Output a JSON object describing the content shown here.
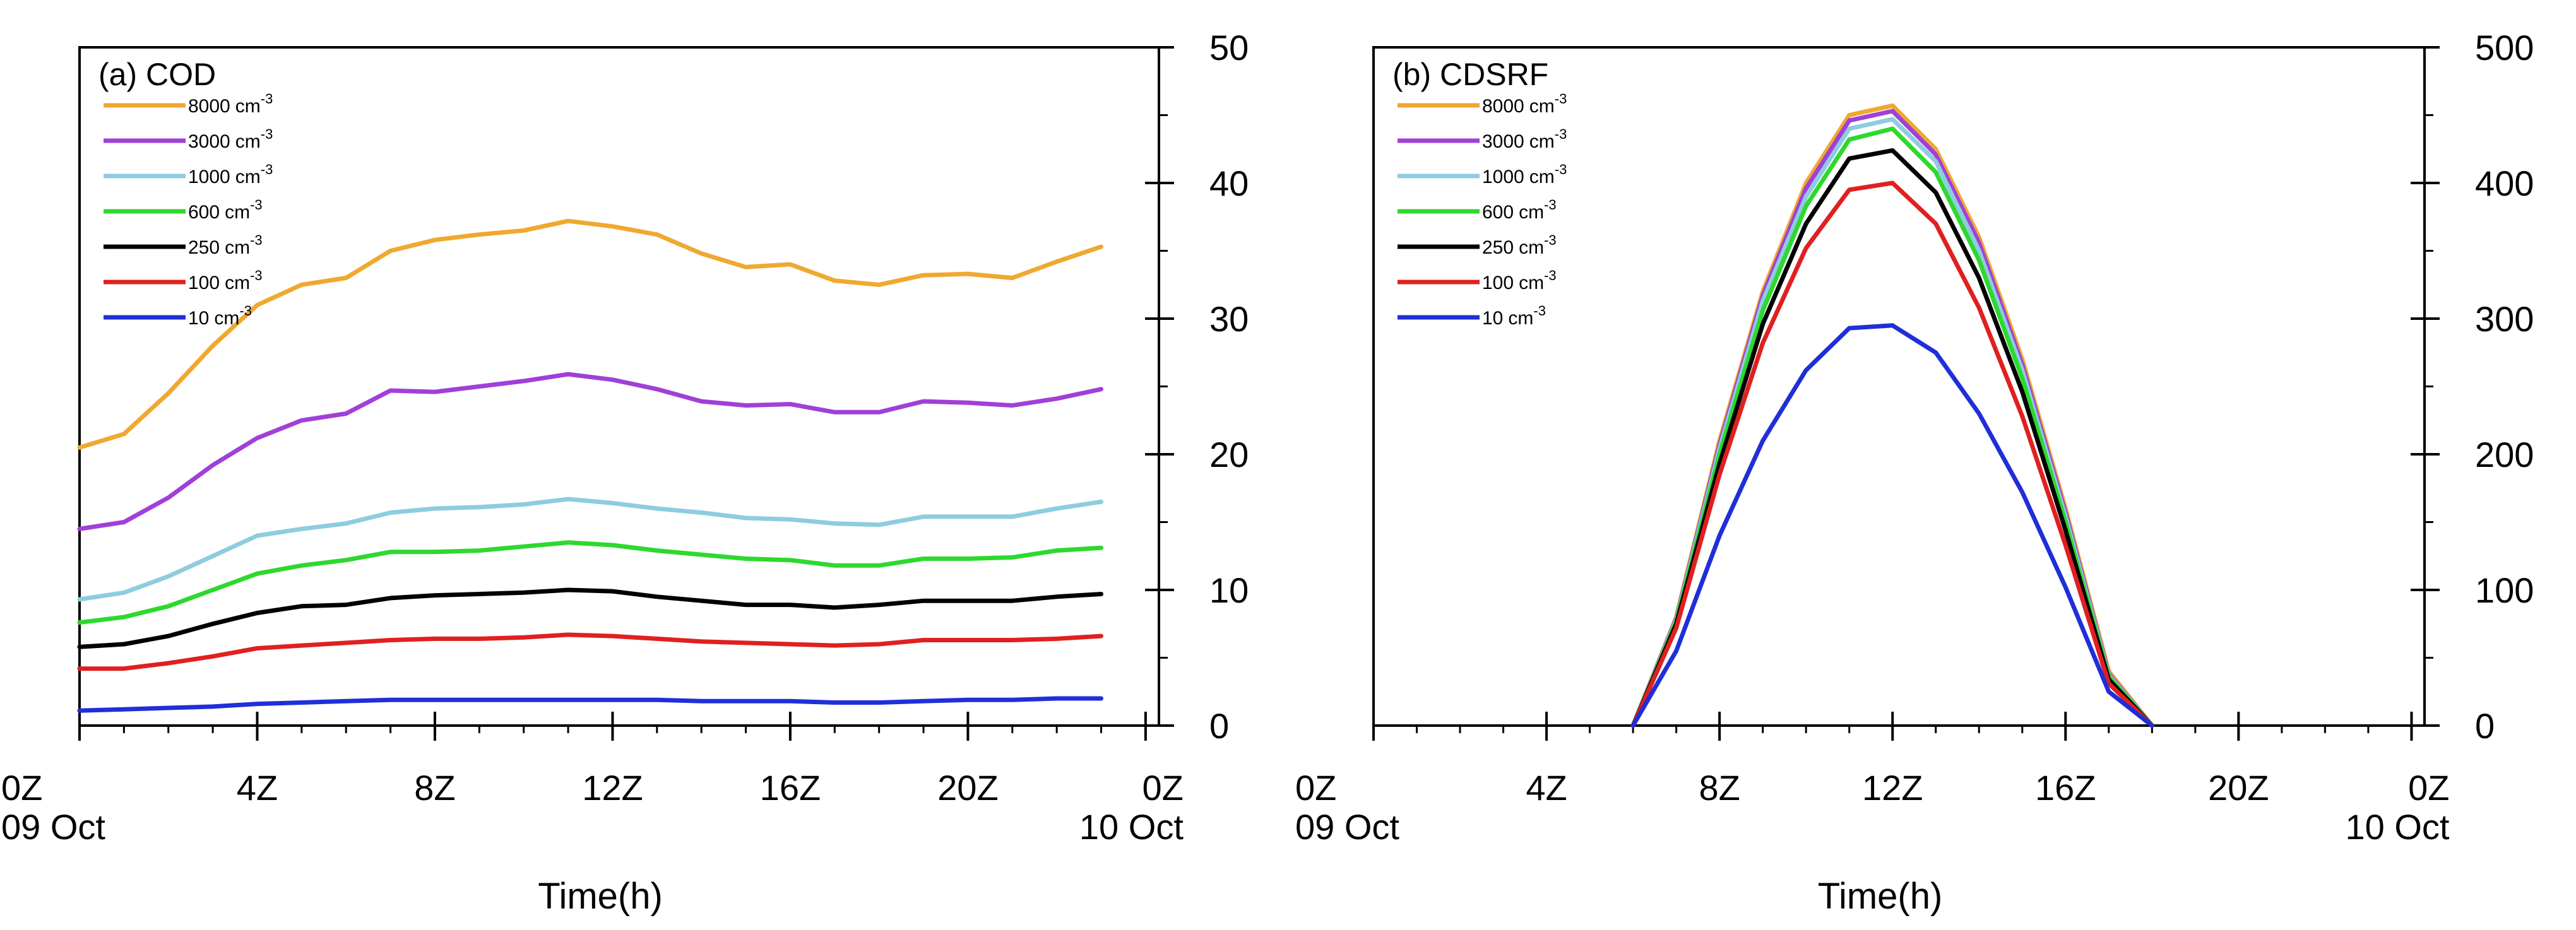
{
  "chart_data": [
    {
      "type": "line",
      "title": "(a) COD",
      "xlabel": "Time(h)",
      "ylabel": "",
      "x_ticks": [
        {
          "hour": 0,
          "label": "0Z",
          "sublabel": "09 Oct"
        },
        {
          "hour": 4,
          "label": "4Z",
          "sublabel": ""
        },
        {
          "hour": 8,
          "label": "8Z",
          "sublabel": ""
        },
        {
          "hour": 12,
          "label": "12Z",
          "sublabel": ""
        },
        {
          "hour": 16,
          "label": "16Z",
          "sublabel": ""
        },
        {
          "hour": 20,
          "label": "20Z",
          "sublabel": ""
        },
        {
          "hour": 24,
          "label": "0Z",
          "sublabel": "10 Oct"
        }
      ],
      "xlim": [
        0,
        24.3
      ],
      "y_ticks": [
        0,
        10,
        20,
        30,
        40,
        50
      ],
      "ylim": [
        0,
        50
      ],
      "y_axis_side": "right",
      "legend_position": "top-left",
      "x": [
        0,
        1,
        2,
        3,
        4,
        5,
        6,
        7,
        8,
        9,
        10,
        11,
        12,
        13,
        14,
        15,
        16,
        17,
        18,
        19,
        20,
        21,
        22,
        23
      ],
      "series": [
        {
          "name": "8000",
          "unit": "cm",
          "exp": "-3",
          "color": "#F0A830",
          "values": [
            20.5,
            21.5,
            24.5,
            28,
            31,
            32.5,
            33,
            35,
            35.8,
            36.2,
            36.5,
            37.2,
            36.8,
            36.2,
            34.8,
            33.8,
            34.0,
            32.8,
            32.5,
            33.2,
            33.3,
            33.0,
            34.2,
            35.3
          ]
        },
        {
          "name": "3000",
          "unit": "cm",
          "exp": "-3",
          "color": "#A040D8",
          "values": [
            14.5,
            15.0,
            16.8,
            19.2,
            21.2,
            22.5,
            23.0,
            24.7,
            24.6,
            25.0,
            25.4,
            25.9,
            25.5,
            24.8,
            23.9,
            23.6,
            23.7,
            23.1,
            23.1,
            23.9,
            23.8,
            23.6,
            24.1,
            24.8
          ]
        },
        {
          "name": "1000",
          "unit": "cm",
          "exp": "-3",
          "color": "#8ECCE0",
          "values": [
            9.3,
            9.8,
            11.0,
            12.5,
            14.0,
            14.5,
            14.9,
            15.7,
            16.0,
            16.1,
            16.3,
            16.7,
            16.4,
            16.0,
            15.7,
            15.3,
            15.2,
            14.9,
            14.8,
            15.4,
            15.4,
            15.4,
            16.0,
            16.5
          ]
        },
        {
          "name": "600",
          "unit": "cm",
          "exp": "-3",
          "color": "#2ED82E",
          "values": [
            7.6,
            8.0,
            8.8,
            10.0,
            11.2,
            11.8,
            12.2,
            12.8,
            12.8,
            12.9,
            13.2,
            13.5,
            13.3,
            12.9,
            12.6,
            12.3,
            12.2,
            11.8,
            11.8,
            12.3,
            12.3,
            12.4,
            12.9,
            13.1
          ]
        },
        {
          "name": "250",
          "unit": "cm",
          "exp": "-3",
          "color": "#000000",
          "values": [
            5.8,
            6.0,
            6.6,
            7.5,
            8.3,
            8.8,
            8.9,
            9.4,
            9.6,
            9.7,
            9.8,
            10.0,
            9.9,
            9.5,
            9.2,
            8.9,
            8.9,
            8.7,
            8.9,
            9.2,
            9.2,
            9.2,
            9.5,
            9.7
          ]
        },
        {
          "name": "100",
          "unit": "cm",
          "exp": "-3",
          "color": "#E02020",
          "values": [
            4.2,
            4.2,
            4.6,
            5.1,
            5.7,
            5.9,
            6.1,
            6.3,
            6.4,
            6.4,
            6.5,
            6.7,
            6.6,
            6.4,
            6.2,
            6.1,
            6.0,
            5.9,
            6.0,
            6.3,
            6.3,
            6.3,
            6.4,
            6.6
          ]
        },
        {
          "name": "10",
          "unit": "cm",
          "exp": "-3",
          "color": "#1F2FD8",
          "values": [
            1.1,
            1.2,
            1.3,
            1.4,
            1.6,
            1.7,
            1.8,
            1.9,
            1.9,
            1.9,
            1.9,
            1.9,
            1.9,
            1.9,
            1.8,
            1.8,
            1.8,
            1.7,
            1.7,
            1.8,
            1.9,
            1.9,
            2.0,
            2.0
          ]
        }
      ]
    },
    {
      "type": "line",
      "title": "(b) CDSRF",
      "xlabel": "Time(h)",
      "ylabel": "",
      "x_ticks": [
        {
          "hour": 0,
          "label": "0Z",
          "sublabel": "09 Oct"
        },
        {
          "hour": 4,
          "label": "4Z",
          "sublabel": ""
        },
        {
          "hour": 8,
          "label": "8Z",
          "sublabel": ""
        },
        {
          "hour": 12,
          "label": "12Z",
          "sublabel": ""
        },
        {
          "hour": 16,
          "label": "16Z",
          "sublabel": ""
        },
        {
          "hour": 20,
          "label": "20Z",
          "sublabel": ""
        },
        {
          "hour": 24,
          "label": "0Z",
          "sublabel": "10 Oct"
        }
      ],
      "xlim": [
        0,
        24.3
      ],
      "y_ticks": [
        0,
        100,
        200,
        300,
        400,
        500
      ],
      "ylim": [
        0,
        500
      ],
      "y_axis_side": "right",
      "legend_position": "top-left",
      "x": [
        6,
        7,
        8,
        9,
        10,
        11,
        12,
        13,
        14,
        15,
        16,
        17,
        18
      ],
      "series": [
        {
          "name": "8000",
          "unit": "cm",
          "exp": "-3",
          "color": "#F0A830",
          "values": [
            0,
            80,
            210,
            320,
            400,
            450,
            457,
            425,
            360,
            270,
            160,
            40,
            0
          ]
        },
        {
          "name": "3000",
          "unit": "cm",
          "exp": "-3",
          "color": "#A040D8",
          "values": [
            0,
            79,
            207,
            317,
            396,
            446,
            453,
            421,
            356,
            266,
            157,
            38,
            0
          ]
        },
        {
          "name": "1000",
          "unit": "cm",
          "exp": "-3",
          "color": "#8ECCE0",
          "values": [
            0,
            78,
            204,
            313,
            390,
            440,
            447,
            416,
            350,
            262,
            154,
            37,
            0
          ]
        },
        {
          "name": "600",
          "unit": "cm",
          "exp": "-3",
          "color": "#2ED82E",
          "values": [
            0,
            77,
            200,
            306,
            383,
            432,
            440,
            408,
            343,
            256,
            150,
            36,
            0
          ]
        },
        {
          "name": "250",
          "unit": "cm",
          "exp": "-3",
          "color": "#000000",
          "values": [
            0,
            75,
            193,
            296,
            370,
            418,
            424,
            393,
            330,
            246,
            144,
            34,
            0
          ]
        },
        {
          "name": "100",
          "unit": "cm",
          "exp": "-3",
          "color": "#E02020",
          "values": [
            0,
            72,
            185,
            282,
            352,
            395,
            400,
            370,
            308,
            228,
            133,
            31,
            0
          ]
        },
        {
          "name": "10",
          "unit": "cm",
          "exp": "-3",
          "color": "#1F2FD8",
          "values": [
            0,
            55,
            140,
            210,
            262,
            293,
            295,
            275,
            230,
            172,
            102,
            25,
            0
          ]
        }
      ]
    }
  ]
}
